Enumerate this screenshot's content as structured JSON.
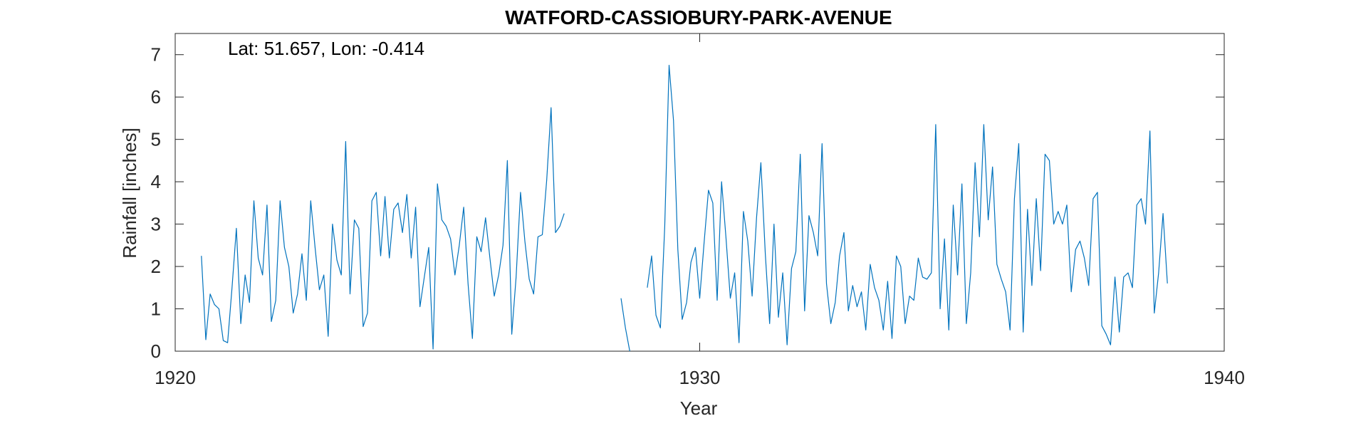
{
  "chart_data": {
    "type": "line",
    "title": "WATFORD-CASSIOBURY-PARK-AVENUE",
    "annotation": "Lat: 51.657, Lon: -0.414",
    "xlabel": "Year",
    "ylabel": "Rainfall [inches]",
    "xlim": [
      1920,
      1940
    ],
    "ylim": [
      0,
      7.5
    ],
    "x_ticks": [
      1920,
      1930,
      1940
    ],
    "y_ticks": [
      0,
      1,
      2,
      3,
      4,
      5,
      6,
      7
    ],
    "grid": false,
    "color": "#0072BD",
    "segments": [
      {
        "x_start": 1920.5,
        "step": 0.0833333,
        "values": [
          2.25,
          0.27,
          1.35,
          1.1,
          1.0,
          0.25,
          0.2,
          1.5,
          2.9,
          0.65,
          1.8,
          1.15,
          3.55,
          2.2,
          1.8,
          3.45,
          0.7,
          1.2,
          3.55,
          2.45,
          2.0,
          0.9,
          1.35,
          2.3,
          1.2,
          3.55,
          2.45,
          1.45,
          1.8,
          0.35,
          3.0,
          2.15,
          1.8,
          4.95,
          1.35,
          3.1,
          2.9,
          0.58,
          0.9,
          3.55,
          3.75,
          2.25,
          3.65,
          2.2,
          3.35,
          3.5,
          2.8,
          3.7,
          2.2,
          3.4,
          1.05,
          1.75,
          2.45,
          0.05,
          3.95,
          3.1,
          2.95,
          2.65,
          1.8,
          2.5,
          3.4,
          1.6,
          0.3,
          2.7,
          2.35,
          3.15,
          2.2,
          1.3,
          1.8,
          2.5,
          4.5,
          0.4,
          1.75,
          3.75,
          2.6,
          1.7,
          1.35,
          2.7,
          2.75,
          4.05,
          5.75,
          2.8,
          2.95,
          3.25
        ]
      },
      {
        "x_start": 1928.5,
        "step": 0.0833333,
        "values": [
          1.25,
          0.55,
          0.0
        ]
      },
      {
        "x_start": 1929.0,
        "step": 0.0833333,
        "values": [
          1.5,
          2.25,
          0.85,
          0.55,
          2.95,
          6.75,
          5.45,
          2.4,
          0.75,
          1.15,
          2.1,
          2.45,
          1.25,
          2.55,
          3.8,
          3.5,
          1.2,
          4.0,
          2.7,
          1.25,
          1.85,
          0.2,
          3.3,
          2.6,
          1.3,
          3.15,
          4.45,
          2.3,
          0.65,
          3.0,
          0.8,
          1.85,
          0.15,
          1.95,
          2.35,
          4.65,
          0.95,
          3.2,
          2.8,
          2.25,
          4.9,
          1.6,
          0.65,
          1.15,
          2.25,
          2.8,
          0.95,
          1.55,
          1.05,
          1.4,
          0.5,
          2.05,
          1.5,
          1.2,
          0.5,
          1.65,
          0.3,
          2.25,
          2.0,
          0.65,
          1.3,
          1.2,
          2.2,
          1.75,
          1.7,
          1.85,
          5.35,
          1.0,
          2.65,
          0.5,
          3.45,
          1.8,
          3.95,
          0.65,
          1.85,
          4.45,
          2.7,
          5.35,
          3.1,
          4.35,
          2.05,
          1.7,
          1.4,
          0.5,
          3.6,
          4.9,
          0.45,
          3.35,
          1.55,
          3.6,
          1.9,
          4.65,
          4.5,
          3.0,
          3.3,
          3.0,
          3.45,
          1.4,
          2.4,
          2.6,
          2.2,
          1.55,
          3.6,
          3.75,
          0.6,
          0.4,
          0.15,
          1.75,
          0.45,
          1.75,
          1.85,
          1.5,
          3.45,
          3.6,
          3.0,
          5.2,
          0.9,
          1.85,
          3.25,
          1.6
        ]
      }
    ]
  }
}
